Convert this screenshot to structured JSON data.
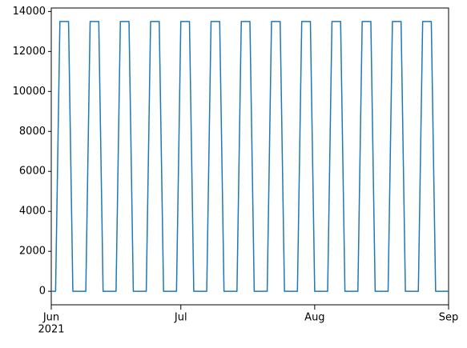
{
  "chart_data": {
    "type": "line",
    "x": [
      "2021-06-01",
      "2021-06-02",
      "2021-06-03",
      "2021-06-04",
      "2021-06-05",
      "2021-06-06",
      "2021-06-07",
      "2021-06-08",
      "2021-06-09",
      "2021-06-10",
      "2021-06-11",
      "2021-06-12",
      "2021-06-13",
      "2021-06-14",
      "2021-06-15",
      "2021-06-16",
      "2021-06-17",
      "2021-06-18",
      "2021-06-19",
      "2021-06-20",
      "2021-06-21",
      "2021-06-22",
      "2021-06-23",
      "2021-06-24",
      "2021-06-25",
      "2021-06-26",
      "2021-06-27",
      "2021-06-28",
      "2021-06-29",
      "2021-06-30",
      "2021-07-01",
      "2021-07-02",
      "2021-07-03",
      "2021-07-04",
      "2021-07-05",
      "2021-07-06",
      "2021-07-07",
      "2021-07-08",
      "2021-07-09",
      "2021-07-10",
      "2021-07-11",
      "2021-07-12",
      "2021-07-13",
      "2021-07-14",
      "2021-07-15",
      "2021-07-16",
      "2021-07-17",
      "2021-07-18",
      "2021-07-19",
      "2021-07-20",
      "2021-07-21",
      "2021-07-22",
      "2021-07-23",
      "2021-07-24",
      "2021-07-25",
      "2021-07-26",
      "2021-07-27",
      "2021-07-28",
      "2021-07-29",
      "2021-07-30",
      "2021-07-31",
      "2021-08-01",
      "2021-08-02",
      "2021-08-03",
      "2021-08-04",
      "2021-08-05",
      "2021-08-06",
      "2021-08-07",
      "2021-08-08",
      "2021-08-09",
      "2021-08-10",
      "2021-08-11",
      "2021-08-12",
      "2021-08-13",
      "2021-08-14",
      "2021-08-15",
      "2021-08-16",
      "2021-08-17",
      "2021-08-18",
      "2021-08-19",
      "2021-08-20",
      "2021-08-21",
      "2021-08-22",
      "2021-08-23",
      "2021-08-24",
      "2021-08-25",
      "2021-08-26",
      "2021-08-27",
      "2021-08-28",
      "2021-08-29",
      "2021-08-30",
      "2021-08-31",
      "2021-09-01"
    ],
    "series": [
      {
        "color": "#1f77b4",
        "values": [
          0,
          0,
          13500,
          13500,
          13500,
          0,
          0,
          0,
          0,
          13500,
          13500,
          13500,
          0,
          0,
          0,
          0,
          13500,
          13500,
          13500,
          0,
          0,
          0,
          0,
          13500,
          13500,
          13500,
          0,
          0,
          0,
          0,
          13500,
          13500,
          13500,
          0,
          0,
          0,
          0,
          13500,
          13500,
          13500,
          0,
          0,
          0,
          0,
          13500,
          13500,
          13500,
          0,
          0,
          0,
          0,
          13500,
          13500,
          13500,
          0,
          0,
          0,
          0,
          13500,
          13500,
          13500,
          0,
          0,
          0,
          0,
          13500,
          13500,
          13500,
          0,
          0,
          0,
          0,
          13500,
          13500,
          13500,
          0,
          0,
          0,
          0,
          13500,
          13500,
          13500,
          0,
          0,
          0,
          0,
          13500,
          13500,
          13500,
          0,
          0,
          0,
          0
        ]
      }
    ],
    "xlim": [
      "2021-06-01",
      "2021-09-01"
    ],
    "xticks": [
      {
        "value": "2021-06-01",
        "label": "Jun"
      },
      {
        "value": "2021-07-01",
        "label": "Jul"
      },
      {
        "value": "2021-08-01",
        "label": "Aug"
      },
      {
        "value": "2021-09-01",
        "label": "Sep"
      }
    ],
    "xtick_year": "2021",
    "ylim": [
      -675,
      14175
    ],
    "yticks": [
      0,
      2000,
      4000,
      6000,
      8000,
      10000,
      12000,
      14000
    ],
    "grid": false
  }
}
